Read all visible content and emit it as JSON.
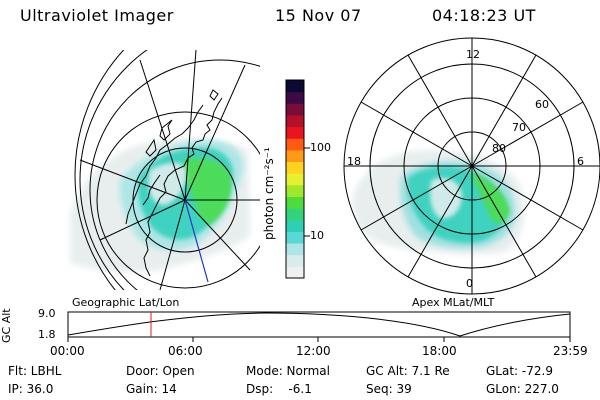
{
  "header": {
    "title": "Ultraviolet Imager",
    "date": "15 Nov 07",
    "time": "04:18:23 UT"
  },
  "colorbar": {
    "unit": "photon cm⁻²s⁻¹",
    "ticks": [
      "100",
      "10"
    ],
    "colors": [
      "#f0f0f0",
      "#d8ecec",
      "#aee6e6",
      "#5ad8d8",
      "#2ecfb4",
      "#34d27a",
      "#4ddc3c",
      "#9fe82a",
      "#e6f02e",
      "#ffd21e",
      "#ff9a14",
      "#ff5a12",
      "#e8141e",
      "#b4102a",
      "#7a0c3a",
      "#3c0a46",
      "#0a0a32"
    ]
  },
  "left_map": {
    "label": "Geographic Lat/Lon"
  },
  "right_map": {
    "label": "Apex MLat/MLT",
    "mlt_labels": {
      "top": "12",
      "left": "18",
      "right": "6",
      "bottom": "0"
    },
    "lat_labels": [
      "60",
      "70",
      "80"
    ]
  },
  "altitude_plot": {
    "axis_title": "GC Alt",
    "ymax": "9.0",
    "ymin": "1.8",
    "time_ticks": [
      "00:00",
      "06:00",
      "12:00",
      "18:00",
      "23:59"
    ]
  },
  "info": {
    "filter": "Flt: LBHL",
    "door": "Door: Open",
    "mode": "Mode: Normal",
    "gc_alt": "GC Alt: 7.1 Re",
    "glat": "GLat: -72.9",
    "ip": "IP: 36.0",
    "gain": "Gain: 14",
    "dsp": "Dsp:    -6.1",
    "seq": "Seq: 39",
    "glon": "GLon: 227.0"
  }
}
